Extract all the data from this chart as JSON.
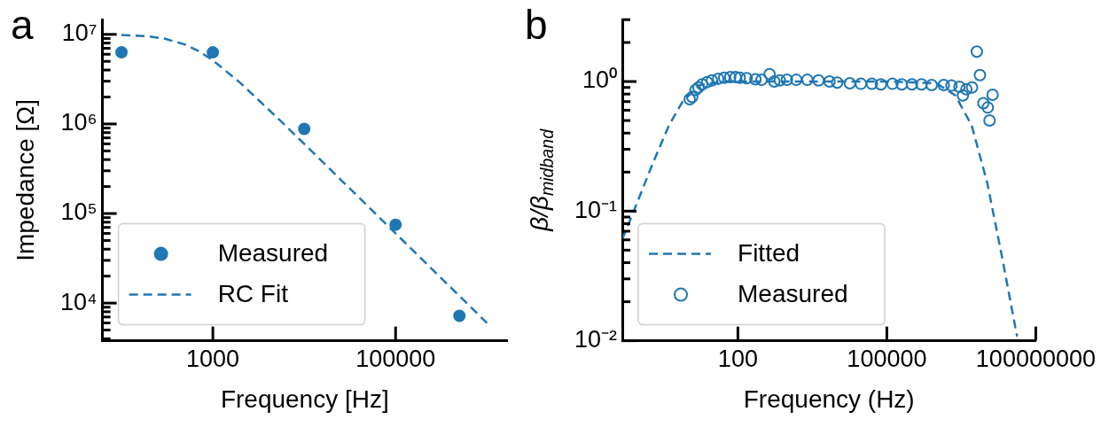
{
  "chart_data": [
    {
      "type": "scatter",
      "title": "a",
      "xlabel": "Frequency [Hz]",
      "ylabel": "Impedance [Ω]",
      "log": "xy",
      "legend": "bottom left",
      "grid": false,
      "xlim": [
        62,
        1660000
      ],
      "xticks": [
        1000,
        100000
      ],
      "ylim": [
        3800,
        14600000
      ],
      "yticks": [
        {
          "value": 10000,
          "label": "10⁴"
        },
        {
          "value": 100000,
          "label": "10⁵"
        },
        {
          "value": 1000000,
          "label": "10⁶"
        },
        {
          "value": 10000000,
          "label": "10⁷"
        },
        {
          "value": 4000,
          "label": null
        },
        {
          "value": 5000,
          "label": null
        },
        {
          "value": 6000,
          "label": null
        },
        {
          "value": 7000,
          "label": null
        },
        {
          "value": 8000,
          "label": null
        },
        {
          "value": 9000,
          "label": null
        },
        {
          "value": 20000,
          "label": null
        },
        {
          "value": 30000,
          "label": null
        },
        {
          "value": 40000,
          "label": null
        },
        {
          "value": 50000,
          "label": null
        },
        {
          "value": 60000,
          "label": null
        },
        {
          "value": 70000,
          "label": null
        },
        {
          "value": 80000,
          "label": null
        },
        {
          "value": 90000,
          "label": null
        },
        {
          "value": 200000,
          "label": null
        },
        {
          "value": 300000,
          "label": null
        },
        {
          "value": 400000,
          "label": null
        },
        {
          "value": 500000,
          "label": null
        },
        {
          "value": 600000,
          "label": null
        },
        {
          "value": 700000,
          "label": null
        },
        {
          "value": 800000,
          "label": null
        },
        {
          "value": 900000,
          "label": null
        },
        {
          "value": 2000000,
          "label": null
        },
        {
          "value": 3000000,
          "label": null
        },
        {
          "value": 4000000,
          "label": null
        },
        {
          "value": 5000000,
          "label": null
        },
        {
          "value": 6000000,
          "label": null
        },
        {
          "value": 7000000,
          "label": null
        },
        {
          "value": 8000000,
          "label": null
        },
        {
          "value": 9000000,
          "label": null
        }
      ],
      "series": [
        {
          "name": "Measured",
          "type": "scatter",
          "marker": "circle",
          "color": "#1f77b4",
          "x": [
            100,
            1000,
            10000,
            100000,
            500000
          ],
          "values": [
            6300000,
            6300000,
            880000,
            75000,
            7200
          ]
        },
        {
          "name": "RC Fit",
          "type": "line",
          "marker": "none",
          "line_style": "dashed",
          "color": "#1f77b4",
          "x": [
            100,
            200,
            300,
            500,
            700,
            1000,
            2000,
            5000,
            10000,
            30000,
            100000,
            1000000
          ],
          "values": [
            9860000,
            9490000,
            8940000,
            7680000,
            6510000,
            5140000,
            2870000,
            1190000,
            599000,
            200000,
            60000,
            6000
          ]
        }
      ]
    },
    {
      "type": "scatter",
      "title": "b",
      "xlabel": "Frequency (Hz)",
      "ylabel": "β/β$_{midband}$",
      "log": "xy",
      "legend": "bottom left",
      "grid": false,
      "xlim": [
        0.47,
        100000000
      ],
      "xticks": [
        100,
        100000,
        100000000
      ],
      "ylim": [
        0.01,
        3
      ],
      "yticks": [
        {
          "value": 0.01,
          "label": "10⁻²"
        },
        {
          "value": 0.1,
          "label": "10⁻¹"
        },
        {
          "value": 1,
          "label": "10⁰"
        },
        {
          "value": 0.02,
          "label": null
        },
        {
          "value": 0.03,
          "label": null
        },
        {
          "value": 0.04,
          "label": null
        },
        {
          "value": 0.05,
          "label": null
        },
        {
          "value": 0.06,
          "label": null
        },
        {
          "value": 0.07,
          "label": null
        },
        {
          "value": 0.08,
          "label": null
        },
        {
          "value": 0.09,
          "label": null
        },
        {
          "value": 0.2,
          "label": null
        },
        {
          "value": 0.3,
          "label": null
        },
        {
          "value": 0.4,
          "label": null
        },
        {
          "value": 0.5,
          "label": null
        },
        {
          "value": 0.6,
          "label": null
        },
        {
          "value": 0.7,
          "label": null
        },
        {
          "value": 0.8,
          "label": null
        },
        {
          "value": 0.9,
          "label": null
        },
        {
          "value": 2,
          "label": null
        },
        {
          "value": 3,
          "label": null
        }
      ],
      "series": [
        {
          "name": "Fitted",
          "type": "line",
          "marker": "none",
          "line_style": "dashed",
          "color": "#1f77b4",
          "x": [
            0.47,
            0.8,
            1.95,
            4.1,
            7.7,
            17,
            50,
            1000,
            100000,
            1000000,
            2400000,
            5100000,
            10500000,
            21000000,
            42000000
          ],
          "values": [
            0.061,
            0.1,
            0.236,
            0.46,
            0.7,
            0.94,
            1.0,
            1.0,
            1.0,
            0.97,
            0.78,
            0.46,
            0.166,
            0.044,
            0.0108
          ]
        },
        {
          "name": "Measured",
          "type": "scatter",
          "marker": "circle",
          "color": "#1f77b4",
          "x": [
            10.7,
            12,
            14,
            16,
            19,
            24,
            30,
            40,
            53,
            70,
            90,
            109,
            150,
            225,
            300,
            435,
            540,
            700,
            970,
            1500,
            2500,
            4200,
            7000,
            10000,
            18000,
            30000,
            50000,
            76000,
            130000,
            200000,
            320000,
            500000,
            800000,
            1400000,
            2000000,
            2900000,
            3400000,
            4000000,
            5200000,
            6500000,
            7500000,
            8800000,
            10800000,
            11700000,
            13500000
          ],
          "values": [
            0.73,
            0.76,
            0.86,
            0.9,
            0.95,
            0.99,
            1.02,
            1.05,
            1.07,
            1.08,
            1.08,
            1.07,
            1.06,
            1.04,
            1.03,
            1.14,
            1.0,
            1.02,
            1.03,
            1.03,
            1.03,
            1.02,
            1.0,
            0.98,
            0.97,
            0.96,
            0.96,
            0.95,
            0.96,
            0.95,
            0.95,
            0.95,
            0.94,
            0.94,
            0.93,
            0.91,
            0.78,
            0.87,
            0.9,
            1.7,
            1.12,
            0.68,
            0.63,
            0.5,
            0.79
          ]
        }
      ]
    }
  ]
}
